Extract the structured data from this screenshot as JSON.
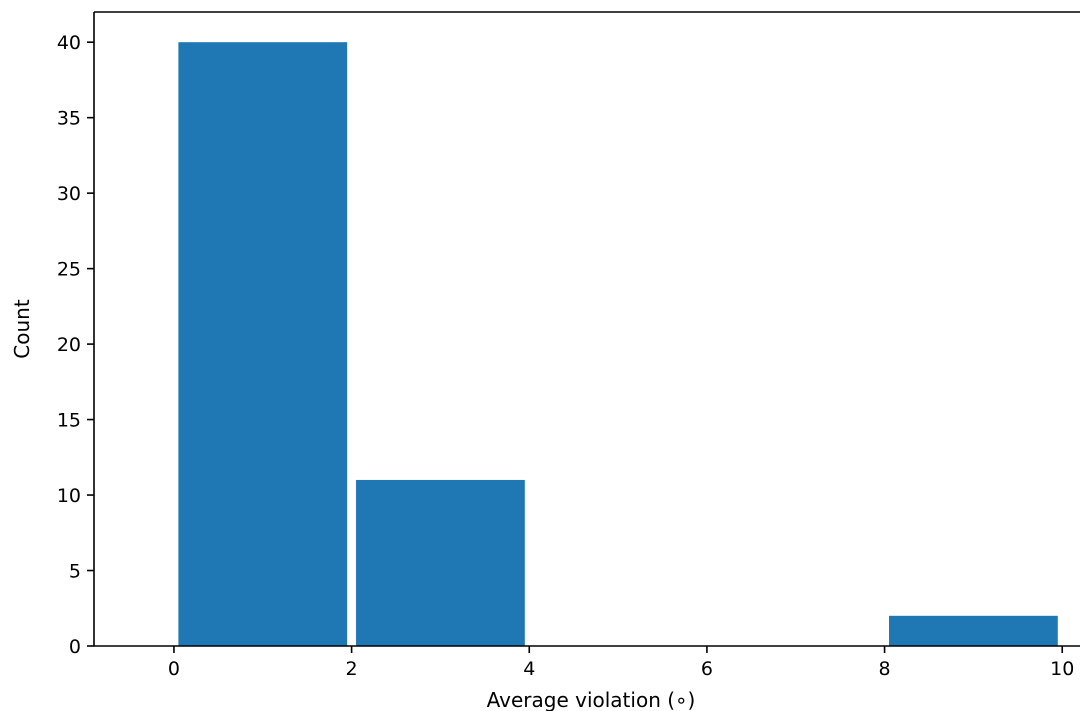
{
  "chart_data": {
    "type": "bar",
    "title": "",
    "xlabel": "Average violation (∘)",
    "ylabel": "Count",
    "xlim": [
      -0.9,
      10.2
    ],
    "ylim": [
      0,
      42
    ],
    "x_ticks": [
      "0",
      "2",
      "4",
      "6",
      "8",
      "10"
    ],
    "y_ticks": [
      "0",
      "5",
      "10",
      "15",
      "20",
      "25",
      "30",
      "35",
      "40"
    ],
    "bins": [
      {
        "start": 0,
        "end": 2,
        "value": 40
      },
      {
        "start": 2,
        "end": 4,
        "value": 11
      },
      {
        "start": 4,
        "end": 6,
        "value": 0
      },
      {
        "start": 6,
        "end": 8,
        "value": 0
      },
      {
        "start": 8,
        "end": 10,
        "value": 2
      }
    ],
    "bar_color": "#1f77b4",
    "grid": false,
    "legend": "none"
  }
}
